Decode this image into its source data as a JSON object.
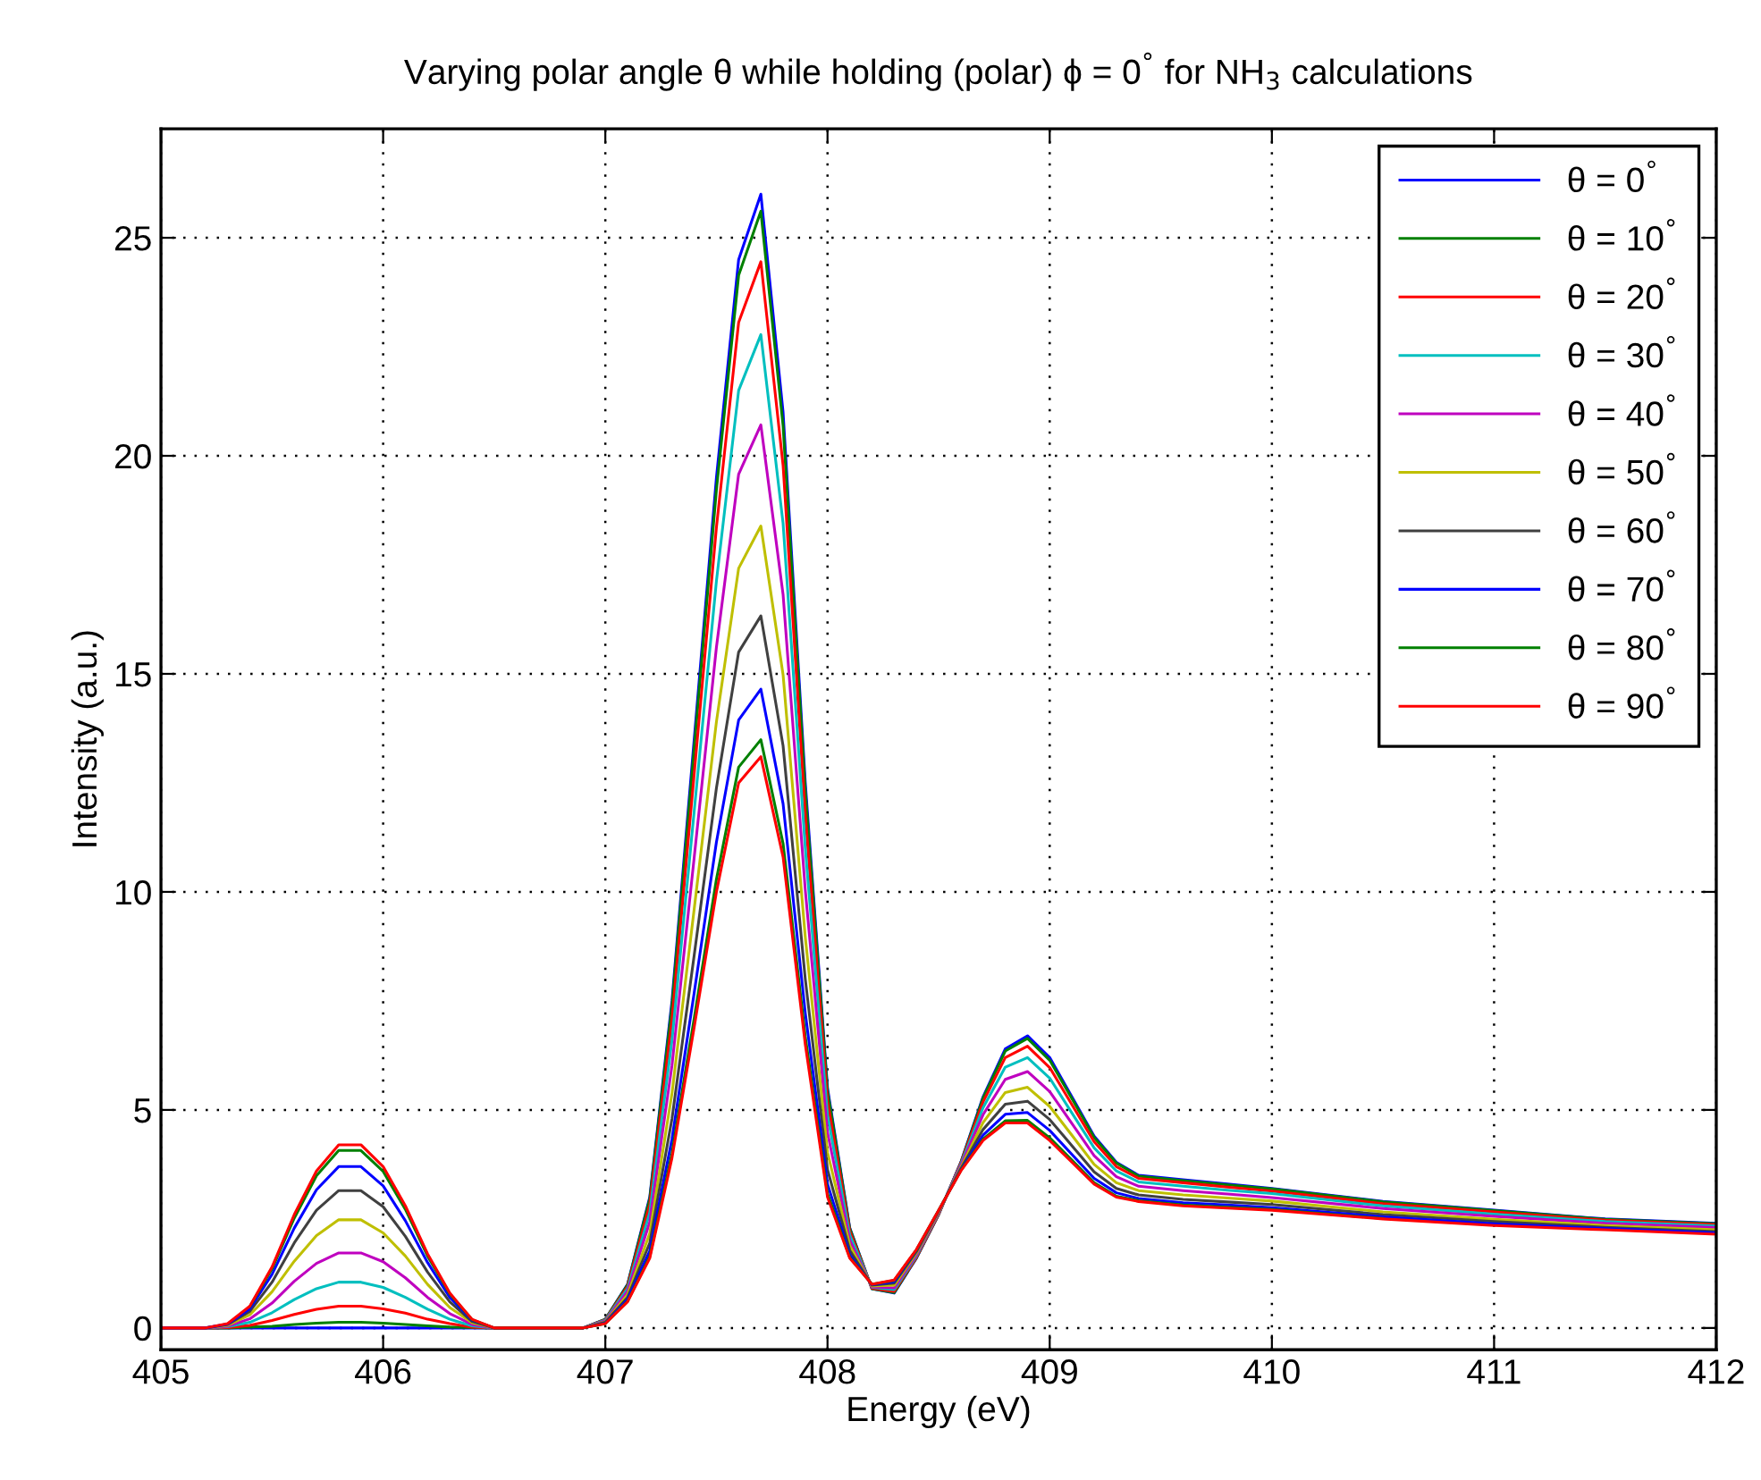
{
  "chart_data": {
    "type": "line",
    "title": "Varying polar angle θ while holding (polar) ϕ = 0$^{°}$ for NH$_{3}$ calculations",
    "xlabel": "Energy (eV)",
    "ylabel": "Intensity (a.u.)",
    "xlim": [
      405,
      412
    ],
    "ylim": [
      -0.5,
      27.5
    ],
    "xticks": [
      405,
      406,
      407,
      408,
      409,
      410,
      411,
      412
    ],
    "yticks": [
      0,
      5,
      10,
      15,
      20,
      25
    ],
    "grid": true,
    "legend": "top right",
    "line_style": "solid",
    "marker": "none",
    "x": [
      405.0,
      405.2,
      405.3,
      405.4,
      405.5,
      405.6,
      405.7,
      405.8,
      405.9,
      406.0,
      406.1,
      406.2,
      406.3,
      406.4,
      406.5,
      406.6,
      406.9,
      407.0,
      407.1,
      407.2,
      407.3,
      407.4,
      407.5,
      407.6,
      407.7,
      407.8,
      407.9,
      408.0,
      408.1,
      408.2,
      408.3,
      408.4,
      408.5,
      408.6,
      408.7,
      408.8,
      408.9,
      409.0,
      409.1,
      409.2,
      409.3,
      409.4,
      409.6,
      409.8,
      410.0,
      410.5,
      411.0,
      411.5,
      412.0
    ],
    "series": [
      {
        "name": "θ = 0$^{°}$",
        "color": "#0000ff",
        "values": [
          0,
          0,
          0,
          0,
          0,
          0,
          0,
          0,
          0,
          0,
          0,
          0,
          0,
          0,
          0,
          0,
          0,
          0.2,
          1.0,
          3.0,
          7.5,
          13.5,
          19.5,
          24.5,
          26.0,
          21.0,
          12.5,
          5.5,
          2.3,
          0.9,
          0.8,
          1.6,
          2.6,
          3.8,
          5.3,
          6.4,
          6.7,
          6.2,
          5.3,
          4.4,
          3.8,
          3.5,
          3.4,
          3.3,
          3.2,
          2.9,
          2.7,
          2.5,
          2.4
        ]
      },
      {
        "name": "θ = 10$^{°}$",
        "color": "#008000",
        "values": [
          0,
          0,
          0,
          0.02,
          0.04,
          0.08,
          0.11,
          0.13,
          0.13,
          0.11,
          0.08,
          0.05,
          0.02,
          0.01,
          0,
          0,
          0,
          0.2,
          0.99,
          2.96,
          7.39,
          13.3,
          19.22,
          24.14,
          25.61,
          20.69,
          12.32,
          5.43,
          2.28,
          0.9,
          0.81,
          1.61,
          2.6,
          3.79,
          5.27,
          6.35,
          6.64,
          6.14,
          5.26,
          4.37,
          3.78,
          3.48,
          3.38,
          3.28,
          3.19,
          2.89,
          2.69,
          2.49,
          2.39
        ]
      },
      {
        "name": "θ = 20$^{°}$",
        "color": "#ff0000",
        "values": [
          0,
          0,
          0.01,
          0.06,
          0.17,
          0.31,
          0.43,
          0.5,
          0.5,
          0.44,
          0.34,
          0.2,
          0.1,
          0.02,
          0,
          0,
          0,
          0.19,
          0.95,
          2.83,
          7.07,
          12.71,
          18.36,
          23.06,
          24.45,
          19.78,
          11.78,
          5.2,
          2.22,
          0.91,
          0.84,
          1.62,
          2.61,
          3.78,
          5.18,
          6.2,
          6.46,
          5.97,
          5.12,
          4.27,
          3.7,
          3.43,
          3.33,
          3.23,
          3.14,
          2.85,
          2.66,
          2.47,
          2.37
        ]
      },
      {
        "name": "θ = 30$^{°}$",
        "color": "#00bfbf",
        "values": [
          0,
          0,
          0.03,
          0.13,
          0.35,
          0.65,
          0.9,
          1.05,
          1.05,
          0.93,
          0.7,
          0.43,
          0.2,
          0.05,
          0,
          0,
          0,
          0.18,
          0.9,
          2.65,
          6.6,
          11.85,
          17.13,
          21.5,
          22.78,
          18.45,
          11.0,
          4.88,
          2.13,
          0.93,
          0.88,
          1.65,
          2.63,
          3.75,
          5.05,
          5.98,
          6.2,
          5.73,
          4.93,
          4.13,
          3.6,
          3.35,
          3.25,
          3.16,
          3.08,
          2.8,
          2.61,
          2.44,
          2.34
        ]
      },
      {
        "name": "θ = 40$^{°}$",
        "color": "#bf00bf",
        "values": [
          0,
          0,
          0.04,
          0.21,
          0.57,
          1.07,
          1.48,
          1.72,
          1.72,
          1.52,
          1.15,
          0.7,
          0.33,
          0.08,
          0,
          0,
          0,
          0.16,
          0.84,
          2.43,
          6.02,
          10.79,
          15.61,
          19.58,
          20.71,
          16.82,
          10.04,
          4.48,
          2.01,
          0.94,
          0.92,
          1.68,
          2.64,
          3.72,
          4.89,
          5.7,
          5.88,
          5.42,
          4.69,
          3.95,
          3.47,
          3.25,
          3.15,
          3.07,
          2.99,
          2.74,
          2.56,
          2.4,
          2.3
        ]
      },
      {
        "name": "θ = 50$^{°}$",
        "color": "#bfbf00",
        "values": [
          0,
          0,
          0.06,
          0.3,
          0.83,
          1.53,
          2.12,
          2.48,
          2.48,
          2.18,
          1.65,
          1.0,
          0.47,
          0.12,
          0,
          0,
          0,
          0.14,
          0.76,
          2.17,
          5.38,
          9.61,
          13.9,
          17.42,
          18.39,
          14.98,
          8.96,
          4.03,
          1.89,
          0.96,
          0.98,
          1.72,
          2.66,
          3.68,
          4.71,
          5.4,
          5.52,
          5.08,
          4.42,
          3.75,
          3.33,
          3.15,
          3.05,
          2.98,
          2.91,
          2.66,
          2.49,
          2.35,
          2.25
        ]
      },
      {
        "name": "θ = 60$^{°}$",
        "color": "#404040",
        "values": [
          0,
          0,
          0.08,
          0.38,
          1.05,
          1.95,
          2.7,
          3.15,
          3.15,
          2.78,
          2.1,
          1.28,
          0.6,
          0.15,
          0,
          0,
          0,
          0.13,
          0.7,
          1.95,
          4.8,
          8.55,
          12.38,
          15.5,
          16.33,
          13.35,
          8.0,
          3.63,
          1.78,
          0.98,
          1.03,
          1.75,
          2.68,
          3.65,
          4.55,
          5.13,
          5.2,
          4.78,
          4.18,
          3.58,
          3.2,
          3.05,
          2.95,
          2.89,
          2.83,
          2.6,
          2.44,
          2.31,
          2.21
        ]
      },
      {
        "name": "θ = 70$^{°}$",
        "color": "#0000ff",
        "values": [
          0,
          0,
          0.09,
          0.44,
          1.23,
          2.29,
          3.17,
          3.7,
          3.7,
          3.26,
          2.46,
          1.5,
          0.7,
          0.18,
          0,
          0,
          0,
          0.11,
          0.65,
          1.77,
          4.33,
          7.69,
          11.14,
          13.94,
          14.65,
          12.02,
          7.22,
          3.3,
          1.68,
          0.99,
          1.06,
          1.78,
          2.69,
          3.62,
          4.42,
          4.9,
          4.94,
          4.53,
          3.98,
          3.43,
          3.1,
          2.97,
          2.87,
          2.82,
          2.76,
          2.55,
          2.39,
          2.28,
          2.18
        ]
      },
      {
        "name": "θ = 80$^{°}$",
        "color": "#008000",
        "values": [
          null,
          null,
          null,
          0.49,
          1.36,
          2.52,
          3.49,
          4.07,
          4.07,
          3.59,
          2.72,
          1.65,
          0.78,
          0.19,
          0,
          0,
          0,
          0.1,
          0.61,
          1.64,
          4.01,
          7.1,
          10.29,
          12.86,
          13.49,
          11.11,
          6.68,
          3.08,
          1.62,
          1.0,
          1.09,
          1.79,
          2.7,
          3.61,
          4.33,
          4.75,
          4.76,
          4.36,
          3.85,
          3.33,
          3.02,
          2.92,
          2.82,
          2.77,
          2.72,
          2.51,
          null,
          null,
          null
        ]
      },
      {
        "name": "θ = 90$^{°}$",
        "color": "#ff0000",
        "values": [
          0,
          0,
          0.1,
          0.5,
          1.4,
          2.6,
          3.6,
          4.2,
          4.2,
          3.7,
          2.8,
          1.7,
          0.8,
          0.2,
          0,
          0,
          0,
          0.1,
          0.6,
          1.6,
          3.9,
          6.9,
          10.0,
          12.5,
          13.1,
          10.8,
          6.5,
          3.0,
          1.6,
          1.0,
          1.1,
          1.8,
          2.7,
          3.6,
          4.3,
          4.7,
          4.7,
          4.3,
          3.8,
          3.3,
          3.0,
          2.9,
          2.8,
          2.75,
          2.7,
          2.5,
          2.35,
          2.25,
          2.15
        ]
      }
    ]
  }
}
